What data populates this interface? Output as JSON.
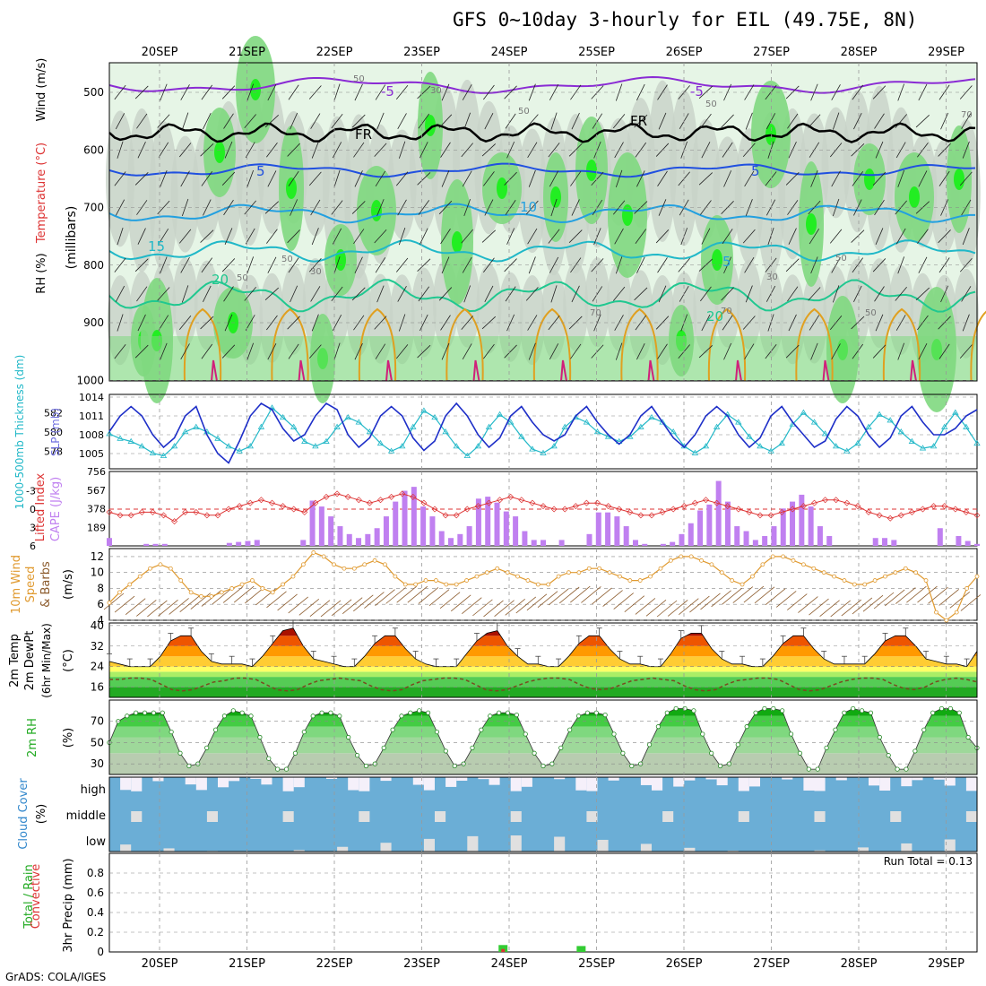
{
  "title": "GFS 0~10day 3-hourly for EIL (49.75E, 8N)",
  "credit": "GrADS: COLA/IGES",
  "colors": {
    "rh_green": "#33cc33",
    "rh_light": "#e6f5e6",
    "rh_gray": "#c8d2c8",
    "slp_line": "#1e2fc8",
    "thickness_line": "#22b8c8",
    "cape_bar": "#c080f0",
    "lifted_index": "#dd3333",
    "wind_speed": "#e09a30",
    "wind_barbs": "#8b5a2b",
    "dewpoint": "#7a4a20",
    "cloud": "#6baed6",
    "cloud_gap": "#e0e0e0",
    "precip_total": "#33cc33",
    "precip_conv": "#dd3333"
  },
  "chart_data": [
    {
      "type": "heatmap",
      "panel": "upper_air",
      "xlabels": [
        "20SEP",
        "21SEP",
        "22SEP",
        "23SEP",
        "24SEP",
        "25SEP",
        "26SEP",
        "27SEP",
        "28SEP",
        "29SEP"
      ],
      "ylabel_parts": [
        "Wind (m/s)",
        "Temperature (°C)",
        "RH (%)",
        "(millibars)"
      ],
      "yticks": [
        500,
        600,
        700,
        800,
        900,
        1000
      ],
      "isotherm_labels": [
        "-5",
        "-5",
        "FR",
        "FR",
        "5",
        "5",
        "10",
        "15",
        "5",
        "20",
        "20"
      ],
      "rh_labels": [
        "50",
        "30",
        "50",
        "50",
        "30",
        "50",
        "50",
        "50",
        "30",
        "70",
        "70",
        "50",
        "70"
      ]
    },
    {
      "type": "line",
      "panel": "slp_thickness",
      "ylabel_left": "1000-500mb Thickness (dm)",
      "ylabel_right": "SLP (mb)",
      "yticks_left": [
        578,
        580,
        582
      ],
      "yticks_right": [
        1005,
        1008,
        1011,
        1014
      ],
      "series": [
        {
          "name": "SLP (mb)",
          "values": [
            1008.5,
            1011,
            1012.5,
            1011,
            1008,
            1006,
            1007.5,
            1011,
            1012.5,
            1008,
            1005,
            1003.5,
            1007,
            1011,
            1013,
            1012,
            1009,
            1007,
            1008,
            1011,
            1013,
            1012,
            1008,
            1006,
            1007.5,
            1011,
            1012.5,
            1011,
            1007.5,
            1005.5,
            1007,
            1011,
            1013,
            1011,
            1008,
            1006,
            1007.5,
            1011,
            1012.5,
            1010,
            1008,
            1007,
            1008,
            1011,
            1012.5,
            1010,
            1008,
            1006.5,
            1008,
            1011,
            1012.5,
            1010,
            1007.5,
            1006,
            1008,
            1011,
            1012.5,
            1011,
            1008,
            1006,
            1007.5,
            1011,
            1012.5,
            1010,
            1008,
            1006,
            1007,
            1010.5,
            1012.5,
            1011,
            1008,
            1006,
            1007.5,
            1011,
            1012.5,
            1010,
            1008,
            1008,
            1009,
            1011,
            1012
          ]
        },
        {
          "name": "Thickness (dm)",
          "values": [
            579.8,
            579.3,
            579.0,
            578.5,
            577.8,
            577.5,
            578.5,
            580.0,
            580.5,
            580.0,
            579.3,
            578.5,
            578.0,
            578.5,
            580.5,
            582.5,
            581.5,
            580.5,
            579.0,
            578.5,
            579.0,
            580.5,
            581.5,
            581.0,
            580.0,
            578.8,
            578.0,
            578.5,
            580.5,
            582.2,
            581.5,
            580.0,
            578.5,
            577.5,
            578.5,
            580.5,
            581.8,
            581.0,
            579.5,
            578.2,
            577.8,
            578.5,
            580.5,
            581.5,
            581.0,
            580.0,
            579.5,
            579.0,
            579.5,
            580.5,
            581.5,
            581.0,
            580.0,
            578.5,
            577.8,
            578.5,
            580.5,
            581.8,
            581.0,
            579.5,
            578.5,
            578.0,
            578.8,
            580.8,
            582.0,
            581.0,
            579.8,
            578.5,
            578.0,
            578.8,
            580.5,
            581.8,
            581.2,
            580.0,
            579.0,
            578.3,
            578.5,
            580.5,
            582.0,
            580.5,
            578.8
          ]
        }
      ]
    },
    {
      "type": "bar",
      "panel": "cape_li",
      "ylabel_left": "Lifted Index",
      "ylabel_right": "CAPE (J/kg)",
      "yticks_left": [
        -3,
        0,
        3,
        6
      ],
      "yticks_left_labels": [
        "-3",
        "0",
        "3",
        "6"
      ],
      "yticks_right": [
        189,
        378,
        567,
        756
      ],
      "series": [
        {
          "name": "CAPE",
          "values": [
            80,
            0,
            0,
            0,
            20,
            20,
            20,
            0,
            0,
            0,
            0,
            0,
            0,
            30,
            40,
            50,
            60,
            0,
            0,
            0,
            0,
            60,
            460,
            400,
            300,
            200,
            120,
            80,
            120,
            180,
            300,
            450,
            560,
            600,
            400,
            300,
            150,
            80,
            120,
            200,
            480,
            500,
            440,
            350,
            300,
            150,
            60,
            60,
            0,
            60,
            0,
            0,
            120,
            340,
            340,
            300,
            200,
            60,
            20,
            0,
            20,
            40,
            120,
            230,
            360,
            420,
            660,
            450,
            200,
            150,
            60,
            100,
            200,
            380,
            450,
            520,
            400,
            200,
            100,
            0,
            0,
            0,
            0,
            80,
            80,
            60,
            0,
            0,
            0,
            0,
            180,
            0,
            100,
            50,
            20
          ]
        },
        {
          "name": "Lifted Index",
          "values": [
            0.5,
            1,
            1,
            0.5,
            0.5,
            1,
            2,
            0.5,
            0.5,
            1,
            1,
            0,
            -0.5,
            -1,
            -1.5,
            -1,
            -0.5,
            0,
            0.5,
            -1,
            -2,
            -2.5,
            -2,
            -1.5,
            -1,
            -1.5,
            -2,
            -2.5,
            -2,
            -1,
            0,
            1,
            1,
            0,
            -0.5,
            -1,
            -1.5,
            -2,
            -1.5,
            -1,
            -0.5,
            0,
            0,
            -0.5,
            -1,
            -1,
            -0.5,
            0,
            0.5,
            1,
            1,
            0.5,
            0,
            -0.5,
            -1,
            -1.5,
            -1,
            -0.5,
            0,
            0.5,
            1,
            1,
            0.5,
            0,
            -0.5,
            -1,
            -1.5,
            -1.5,
            -1,
            -0.5,
            0.5,
            1,
            1.5,
            1,
            0.5,
            0,
            -0.5,
            -0.5,
            0,
            0.5,
            1
          ]
        }
      ]
    },
    {
      "type": "line",
      "panel": "wind10m",
      "ylabel_parts": [
        "10m Wind",
        "Speed",
        "& Barbs",
        "(m/s)"
      ],
      "yticks": [
        4,
        6,
        8,
        10,
        12
      ],
      "series": [
        {
          "name": "10m Wind Speed",
          "values": [
            6.2,
            7.5,
            8.5,
            9.5,
            10.5,
            11,
            10.5,
            9,
            7.5,
            7,
            7,
            7.5,
            8,
            8.5,
            9,
            8,
            7.5,
            8.5,
            9.5,
            11,
            12.5,
            12,
            11,
            10.5,
            10.5,
            11,
            11.5,
            11,
            9.5,
            8.5,
            8.5,
            9,
            9,
            8.5,
            8.5,
            9,
            9.5,
            10,
            10.5,
            10,
            9.5,
            9,
            8.5,
            8.5,
            9.5,
            10,
            10,
            10.5,
            10.5,
            10,
            9.5,
            9,
            9,
            9.5,
            10.5,
            11.5,
            12,
            12,
            11.5,
            11,
            10,
            9,
            8.5,
            9.5,
            11,
            12,
            12,
            11.5,
            11,
            10.5,
            10,
            9.5,
            9,
            8.5,
            8.5,
            9,
            9.5,
            10,
            10.5,
            10,
            9,
            5,
            4,
            5,
            8,
            9.5
          ]
        }
      ]
    },
    {
      "type": "area",
      "panel": "temp2m",
      "ylabel_parts": [
        "2m Temp",
        "2m DewPt",
        "(6hr Min/Max)",
        "(°C)"
      ],
      "yticks": [
        16,
        24,
        32,
        40
      ],
      "series": [
        {
          "name": "2m Temp",
          "values": [
            26,
            25,
            24,
            24,
            24,
            28,
            34,
            36,
            36,
            30,
            26,
            25,
            25,
            25,
            24,
            28,
            33,
            38,
            39,
            32,
            27,
            26,
            25,
            24,
            24,
            28,
            33,
            36,
            36,
            31,
            27,
            25,
            24,
            24,
            24,
            29,
            34,
            37,
            38,
            32,
            28,
            25,
            25,
            24,
            24,
            28,
            33,
            36,
            36,
            31,
            27,
            25,
            25,
            24,
            24,
            29,
            35,
            37,
            37,
            31,
            27,
            25,
            25,
            24,
            24,
            28,
            33,
            36,
            36,
            31,
            27,
            25,
            25,
            25,
            25,
            29,
            34,
            36,
            36,
            32,
            27,
            26,
            25,
            25,
            24,
            30
          ]
        },
        {
          "name": "2m DewPt",
          "values": [
            19,
            19,
            19.5,
            19.5,
            19,
            17,
            15,
            14.5,
            15,
            16.5,
            18,
            18.5,
            19.5,
            19.5,
            19,
            17,
            15,
            14.5,
            15,
            17,
            18.5,
            19,
            19.5,
            19,
            18.5,
            16.5,
            15,
            14.5,
            15,
            17,
            18.5,
            19,
            19.5,
            19.5,
            19,
            17,
            15,
            14.5,
            15,
            16.5,
            18,
            19,
            19.5,
            19.5,
            19,
            17,
            15.5,
            15,
            15.5,
            17,
            18.5,
            19,
            19.5,
            19,
            18.5,
            16.5,
            15,
            14.5,
            15,
            17,
            18.5,
            19,
            19.5,
            19.5,
            19,
            17,
            15,
            14.5,
            15,
            16.5,
            18,
            19,
            19.5,
            19.5,
            19,
            17,
            15.5,
            15,
            16,
            18,
            19,
            19.5,
            19,
            18
          ]
        }
      ]
    },
    {
      "type": "area",
      "panel": "rh2m",
      "ylabel_parts": [
        "2m RH",
        "(%)"
      ],
      "yticks": [
        30,
        50,
        70
      ],
      "series": [
        {
          "name": "2m RH",
          "values": [
            50,
            70,
            75,
            78,
            78,
            78,
            78,
            60,
            40,
            28,
            30,
            45,
            62,
            75,
            80,
            78,
            75,
            55,
            35,
            25,
            25,
            40,
            60,
            75,
            78,
            78,
            75,
            55,
            38,
            28,
            30,
            45,
            62,
            75,
            78,
            80,
            78,
            60,
            42,
            28,
            30,
            45,
            62,
            75,
            78,
            78,
            76,
            58,
            40,
            28,
            30,
            45,
            62,
            75,
            78,
            78,
            76,
            58,
            40,
            28,
            30,
            48,
            65,
            78,
            82,
            82,
            80,
            58,
            40,
            28,
            30,
            48,
            65,
            78,
            82,
            82,
            80,
            58,
            40,
            25,
            25,
            45,
            62,
            78,
            82,
            80,
            78,
            55,
            38,
            25,
            25,
            42,
            62,
            78,
            82,
            82,
            78,
            55,
            45
          ]
        }
      ]
    },
    {
      "type": "heatmap",
      "panel": "cloud",
      "ylabel_parts": [
        "Cloud Cover",
        "(%)"
      ],
      "rows": [
        "high",
        "middle",
        "low"
      ]
    },
    {
      "type": "bar",
      "panel": "precip",
      "ylabel_parts": [
        "Total / Rain",
        "Convective",
        "3hr Precip (mm)"
      ],
      "yticks": [
        0,
        0.2,
        0.4,
        0.6,
        0.8
      ],
      "yticks_labels": [
        "0",
        "0.2",
        "0.4",
        "0.6",
        "0.8"
      ],
      "run_total": "Run Total = 0.13",
      "bars": [
        {
          "x": 36.3,
          "total": 0.07,
          "conv": 0.03
        },
        {
          "x": 43.5,
          "total": 0.06,
          "conv": 0
        }
      ]
    }
  ],
  "xaxis_top": [
    "20SEP",
    "21SEP",
    "22SEP",
    "23SEP",
    "24SEP",
    "25SEP",
    "26SEP",
    "27SEP",
    "28SEP",
    "29SEP"
  ],
  "xaxis_bottom": [
    "20SEP",
    "21SEP",
    "22SEP",
    "23SEP",
    "24SEP",
    "25SEP",
    "26SEP",
    "27SEP",
    "28SEP",
    "29SEP"
  ]
}
